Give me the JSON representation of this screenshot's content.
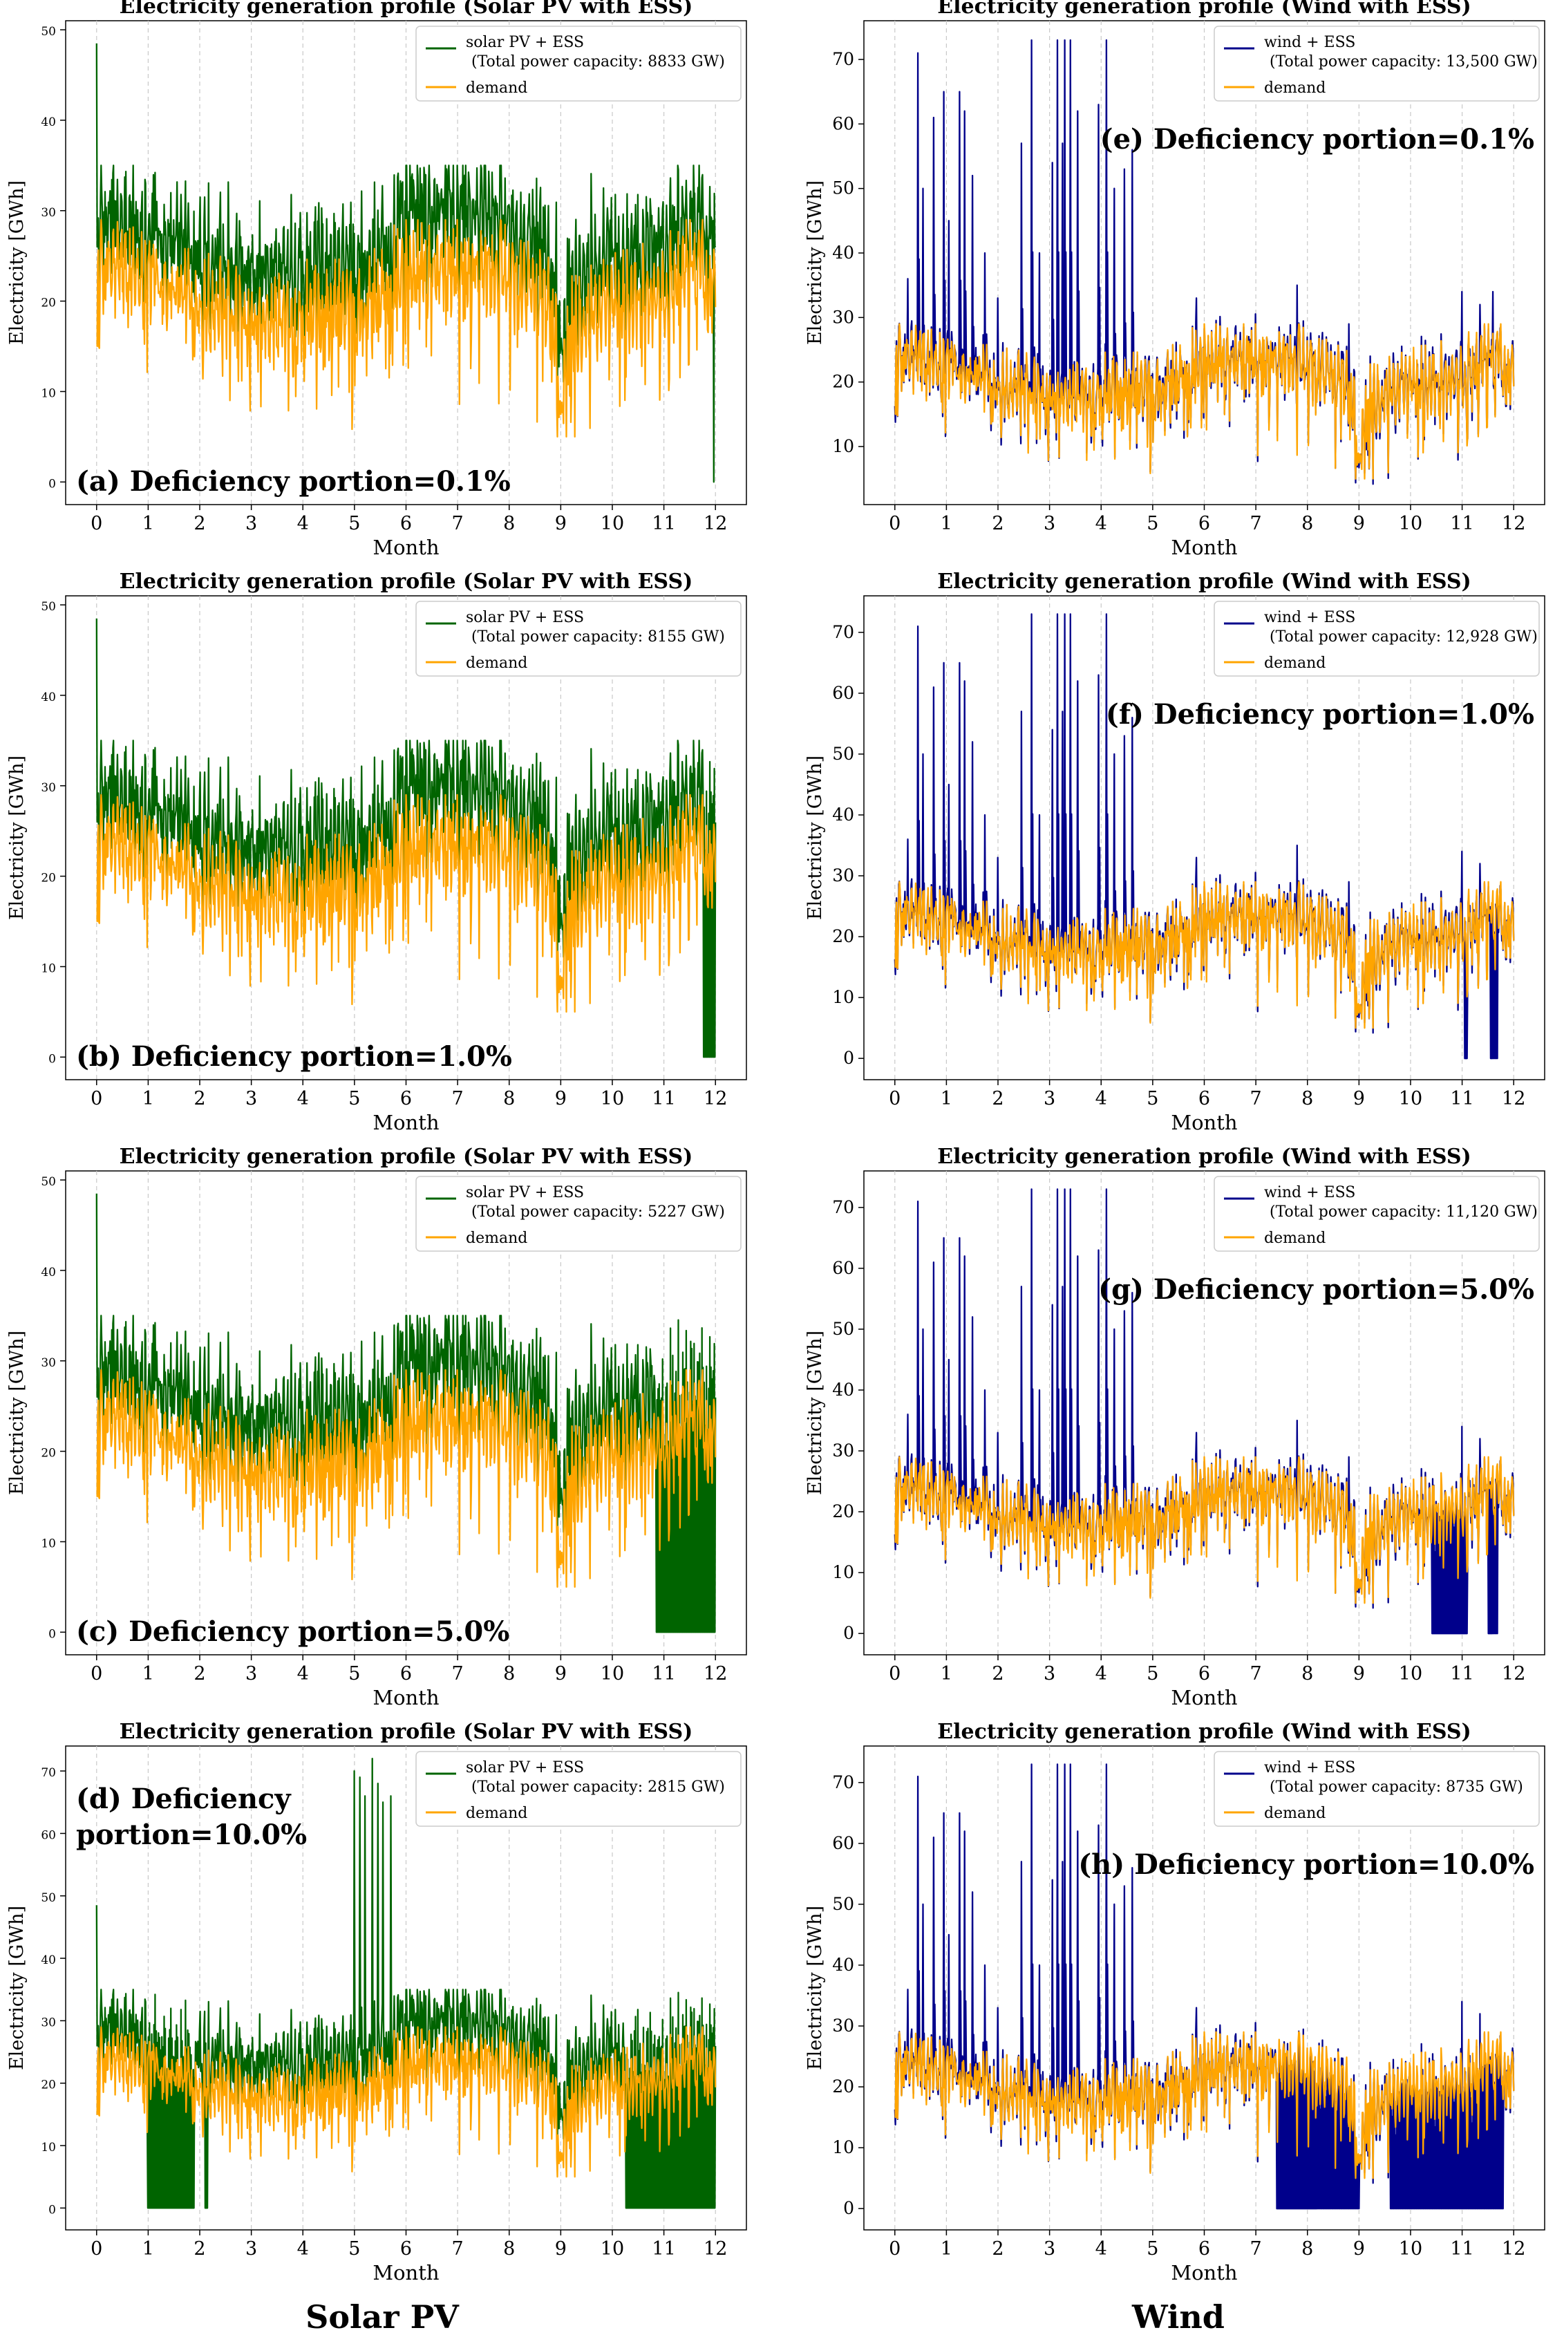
{
  "colors": {
    "solar": "#006400",
    "wind": "#00008b",
    "demand": "#ffa500",
    "grid": "#c8c8c8"
  },
  "column_labels": {
    "solar": "Solar PV",
    "wind": "Wind"
  },
  "chart_data": [
    {
      "id": "a",
      "type": "line",
      "title": "Electricity generation profile (Solar PV with ESS)",
      "xlabel": "Month",
      "ylabel": "Electricity [GWh]",
      "xlim": [
        -0.6,
        12.6
      ],
      "ylim": [
        -2.5,
        51
      ],
      "xticks": [
        0,
        1,
        2,
        3,
        4,
        5,
        6,
        7,
        8,
        9,
        10,
        11,
        12
      ],
      "yticks": [
        0,
        10,
        20,
        30,
        40,
        50
      ],
      "legend": {
        "position": "top-right",
        "label1": "solar PV + ESS",
        "capacity": "(Total power capacity: 8833 GW)",
        "label2": "demand"
      },
      "annotation": "(a) Deficiency portion=0.1%",
      "series": [
        {
          "name": "solar PV + ESS",
          "kind": "solar",
          "spike_at": 0,
          "spike_value": 48.5,
          "drop_to_zero": [
            [
              11.95,
              11.98
            ]
          ]
        },
        {
          "name": "demand",
          "kind": "demand"
        }
      ]
    },
    {
      "id": "b",
      "type": "line",
      "title": "Electricity generation profile (Solar PV with ESS)",
      "xlabel": "Month",
      "ylabel": "Electricity [GWh]",
      "xlim": [
        -0.6,
        12.6
      ],
      "ylim": [
        -2.5,
        51
      ],
      "xticks": [
        0,
        1,
        2,
        3,
        4,
        5,
        6,
        7,
        8,
        9,
        10,
        11,
        12
      ],
      "yticks": [
        0,
        10,
        20,
        30,
        40,
        50
      ],
      "legend": {
        "position": "top-right",
        "label1": "solar PV + ESS",
        "capacity": "(Total power capacity: 8155 GW)",
        "label2": "demand"
      },
      "annotation": "(b) Deficiency portion=1.0%",
      "series": [
        {
          "name": "solar PV + ESS",
          "kind": "solar",
          "spike_at": 0,
          "spike_value": 48.5,
          "drop_to_zero": [
            [
              11.75,
              12.0
            ]
          ]
        },
        {
          "name": "demand",
          "kind": "demand"
        }
      ]
    },
    {
      "id": "c",
      "type": "line",
      "title": "Electricity generation profile (Solar PV with ESS)",
      "xlabel": "Month",
      "ylabel": "Electricity [GWh]",
      "xlim": [
        -0.6,
        12.6
      ],
      "ylim": [
        -2.5,
        51
      ],
      "xticks": [
        0,
        1,
        2,
        3,
        4,
        5,
        6,
        7,
        8,
        9,
        10,
        11,
        12
      ],
      "yticks": [
        0,
        10,
        20,
        30,
        40,
        50
      ],
      "legend": {
        "position": "top-right",
        "label1": "solar PV + ESS",
        "capacity": "(Total power capacity: 5227 GW)",
        "label2": "demand"
      },
      "annotation": "(c) Deficiency portion=5.0%",
      "series": [
        {
          "name": "solar PV + ESS",
          "kind": "solar",
          "spike_at": 0,
          "spike_value": 48.5,
          "drop_to_zero": [
            [
              10.85,
              12.0
            ]
          ]
        },
        {
          "name": "demand",
          "kind": "demand"
        }
      ]
    },
    {
      "id": "d",
      "type": "line",
      "title": "Electricity generation profile (Solar PV with ESS)",
      "xlabel": "Month",
      "ylabel": "Electricity [GWh]",
      "xlim": [
        -0.6,
        12.6
      ],
      "ylim": [
        -3.5,
        74
      ],
      "xticks": [
        0,
        1,
        2,
        3,
        4,
        5,
        6,
        7,
        8,
        9,
        10,
        11,
        12
      ],
      "yticks": [
        0,
        10,
        20,
        30,
        40,
        50,
        60,
        70
      ],
      "legend": {
        "position": "top-right",
        "label1": "solar PV + ESS",
        "capacity": "(Total power capacity: 2815 GW)",
        "label2": "demand"
      },
      "annotation": "(d) Deficiency portion=10.0%",
      "series": [
        {
          "name": "solar PV + ESS",
          "kind": "solar",
          "spike_at": 0,
          "spike_value": 48.5,
          "drop_to_zero": [
            [
              0.98,
              1.9
            ],
            [
              2.1,
              2.15
            ],
            [
              10.25,
              12.0
            ]
          ],
          "peaks": [
            [
              5.0,
              70
            ],
            [
              5.1,
              69
            ],
            [
              5.2,
              66
            ],
            [
              5.35,
              72
            ],
            [
              5.45,
              68
            ],
            [
              5.55,
              65
            ],
            [
              5.7,
              66
            ]
          ]
        },
        {
          "name": "demand",
          "kind": "demand"
        }
      ]
    },
    {
      "id": "e",
      "type": "line",
      "title": "Electricity generation profile (Wind with ESS)",
      "xlabel": "Month",
      "ylabel": "Electricity [GWh]",
      "xlim": [
        -0.6,
        12.6
      ],
      "ylim": [
        1,
        76
      ],
      "xticks": [
        0,
        1,
        2,
        3,
        4,
        5,
        6,
        7,
        8,
        9,
        10,
        11,
        12
      ],
      "yticks": [
        10,
        20,
        30,
        40,
        50,
        60,
        70
      ],
      "legend": {
        "position": "top-right",
        "label1": "wind + ESS",
        "capacity": "(Total power capacity:  13,500 GW)",
        "label2": "demand"
      },
      "annotation": "(e) Deficiency portion=0.1%",
      "series": [
        {
          "name": "wind + ESS",
          "kind": "wind",
          "drop_to_zero": []
        },
        {
          "name": "demand",
          "kind": "demand"
        }
      ]
    },
    {
      "id": "f",
      "type": "line",
      "title": "Electricity generation profile (Wind with ESS)",
      "xlabel": "Month",
      "ylabel": "Electricity [GWh]",
      "xlim": [
        -0.6,
        12.6
      ],
      "ylim": [
        -3.5,
        76
      ],
      "xticks": [
        0,
        1,
        2,
        3,
        4,
        5,
        6,
        7,
        8,
        9,
        10,
        11,
        12
      ],
      "yticks": [
        0,
        10,
        20,
        30,
        40,
        50,
        60,
        70
      ],
      "legend": {
        "position": "top-right",
        "label1": "wind + ESS",
        "capacity": "(Total power capacity:  12,928 GW)",
        "label2": "demand"
      },
      "annotation": "(f) Deficiency portion=1.0%",
      "series": [
        {
          "name": "wind + ESS",
          "kind": "wind",
          "drop_to_zero": [
            [
              11.05,
              11.1
            ],
            [
              11.55,
              11.7
            ]
          ]
        },
        {
          "name": "demand",
          "kind": "demand"
        }
      ]
    },
    {
      "id": "g",
      "type": "line",
      "title": "Electricity generation profile (Wind with ESS)",
      "xlabel": "Month",
      "ylabel": "Electricity [GWh]",
      "xlim": [
        -0.6,
        12.6
      ],
      "ylim": [
        -3.5,
        76
      ],
      "xticks": [
        0,
        1,
        2,
        3,
        4,
        5,
        6,
        7,
        8,
        9,
        10,
        11,
        12
      ],
      "yticks": [
        0,
        10,
        20,
        30,
        40,
        50,
        60,
        70
      ],
      "legend": {
        "position": "top-right",
        "label1": "wind + ESS",
        "capacity": "(Total power capacity:  11,120 GW)",
        "label2": "demand"
      },
      "annotation": "(g) Deficiency portion=5.0%",
      "series": [
        {
          "name": "wind + ESS",
          "kind": "wind",
          "drop_to_zero": [
            [
              10.4,
              11.1
            ],
            [
              11.5,
              11.7
            ]
          ]
        },
        {
          "name": "demand",
          "kind": "demand"
        }
      ]
    },
    {
      "id": "h",
      "type": "line",
      "title": "Electricity generation profile (Wind with ESS)",
      "xlabel": "Month",
      "ylabel": "Electricity [GWh]",
      "xlim": [
        -0.6,
        12.6
      ],
      "ylim": [
        -3.5,
        76
      ],
      "xticks": [
        0,
        1,
        2,
        3,
        4,
        5,
        6,
        7,
        8,
        9,
        10,
        11,
        12
      ],
      "yticks": [
        0,
        10,
        20,
        30,
        40,
        50,
        60,
        70
      ],
      "legend": {
        "position": "top-right",
        "label1": "wind + ESS",
        "capacity": "(Total power capacity: 8735 GW)",
        "label2": "demand"
      },
      "annotation": "(h) Deficiency portion=10.0%",
      "series": [
        {
          "name": "wind + ESS",
          "kind": "wind",
          "drop_to_zero": [
            [
              7.4,
              9.0
            ],
            [
              9.6,
              11.8
            ]
          ]
        },
        {
          "name": "demand",
          "kind": "demand"
        }
      ]
    }
  ]
}
